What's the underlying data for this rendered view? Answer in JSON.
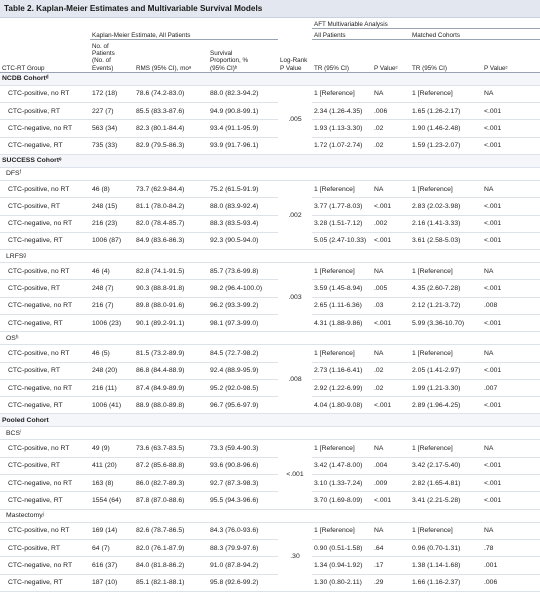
{
  "title": "Table 2. Kaplan-Meier Estimates and Multivariable Survival Models",
  "headers": {
    "aft": "AFT Multivariable Analysis",
    "km": "Kaplan-Meier Estimate, All Patients",
    "all_patients": "All Patients",
    "matched": "Matched Cohorts",
    "group": "CTC-RT Group",
    "n_line1": "No. of",
    "n_line2": "Patients",
    "n_line3": "(No. of",
    "n_line4": "Events)",
    "rms": "RMS (95% CI), moᵃ",
    "surv_line1": "Survival",
    "surv_line2": "Proportion, %",
    "surv_line3": "(95% CI)ᵇ",
    "logrank_line1": "Log-Rank",
    "logrank_line2": "P Value",
    "tr1": "TR (95% CI)",
    "pv1": "P Valueᶜ",
    "tr2": "TR (95% CI)",
    "pv2": "P Valueᶜ"
  },
  "cohorts": {
    "ncdb": "NCDB Cohortᵈ",
    "success": "SUCCESS Cohortᵉ",
    "pooled": "Pooled Cohort"
  },
  "subgroups": {
    "dfs": "DFSᶠ",
    "lrfs": "LRFSᵍ",
    "os": "OSʰ",
    "bcs": "BCSⁱ",
    "mastectomy": "Mastectomyʲ"
  },
  "logrank": {
    "ncdb": ".005",
    "dfs": ".002",
    "lrfs": ".003",
    "os": ".008",
    "bcs": "<.001",
    "mastectomy": ".30"
  },
  "rows": {
    "ncdb": [
      {
        "group": "CTC-positive, no RT",
        "n": "172 (18)",
        "rms": "78.6 (74.2-83.0)",
        "surv": "88.0 (82.3-94.2)",
        "tr1": "1 [Reference]",
        "p1": "NA",
        "tr2": "1 [Reference]",
        "p2": "NA"
      },
      {
        "group": "CTC-positive, RT",
        "n": "227 (7)",
        "rms": "85.5 (83.3-87.6)",
        "surv": "94.9 (90.8-99.1)",
        "tr1": "2.34 (1.26-4.35)",
        "p1": ".006",
        "tr2": "1.65 (1.26-2.17)",
        "p2": "<.001"
      },
      {
        "group": "CTC-negative, no RT",
        "n": "563 (34)",
        "rms": "82.3 (80.1-84.4)",
        "surv": "93.4 (91.1-95.9)",
        "tr1": "1.93 (1.13-3.30)",
        "p1": ".02",
        "tr2": "1.90 (1.46-2.48)",
        "p2": "<.001"
      },
      {
        "group": "CTC-negative, RT",
        "n": "735 (33)",
        "rms": "82.9 (79.5-86.3)",
        "surv": "93.9 (91.7-96.1)",
        "tr1": "1.72 (1.07-2.74)",
        "p1": ".02",
        "tr2": "1.59 (1.23-2.07)",
        "p2": "<.001"
      }
    ],
    "dfs": [
      {
        "group": "CTC-positive, no RT",
        "n": "46 (8)",
        "rms": "73.7 (62.9-84.4)",
        "surv": "75.2 (61.5-91.9)",
        "tr1": "1 [Reference]",
        "p1": "NA",
        "tr2": "1 [Reference]",
        "p2": "NA"
      },
      {
        "group": "CTC-positive, RT",
        "n": "248 (15)",
        "rms": "81.1 (78.0-84.2)",
        "surv": "88.0 (83.9-92.4)",
        "tr1": "3.77 (1.77-8.03)",
        "p1": "<.001",
        "tr2": "2.83 (2.02-3.98)",
        "p2": "<.001"
      },
      {
        "group": "CTC-negative, no RT",
        "n": "216 (23)",
        "rms": "82.0 (78.4-85.7)",
        "surv": "88.3 (83.5-93.4)",
        "tr1": "3.28 (1.51-7.12)",
        "p1": ".002",
        "tr2": "2.16 (1.41-3.33)",
        "p2": "<.001"
      },
      {
        "group": "CTC-negative, RT",
        "n": "1006 (87)",
        "rms": "84.9 (83.6-86.3)",
        "surv": "92.3 (90.5-94.0)",
        "tr1": "5.05 (2.47-10.33)",
        "p1": "<.001",
        "tr2": "3.61 (2.58-5.03)",
        "p2": "<.001"
      }
    ],
    "lrfs": [
      {
        "group": "CTC-positive, no RT",
        "n": "46 (4)",
        "rms": "82.8 (74.1-91.5)",
        "surv": "85.7 (73.6-99.8)",
        "tr1": "1 [Reference]",
        "p1": "NA",
        "tr2": "1 [Reference]",
        "p2": "NA"
      },
      {
        "group": "CTC-positive, RT",
        "n": "248 (7)",
        "rms": "90.3 (88.8-91.8)",
        "surv": "98.2 (96.4-100.0)",
        "tr1": "3.59 (1.45-8.94)",
        "p1": ".005",
        "tr2": "4.35 (2.60-7.28)",
        "p2": "<.001"
      },
      {
        "group": "CTC-negative, no RT",
        "n": "216 (7)",
        "rms": "89.8 (88.0-91.6)",
        "surv": "96.2 (93.3-99.2)",
        "tr1": "2.65 (1.11-6.36)",
        "p1": ".03",
        "tr2": "2.12 (1.21-3.72)",
        "p2": ".008"
      },
      {
        "group": "CTC-negative, RT",
        "n": "1006 (23)",
        "rms": "90.1 (89.2-91.1)",
        "surv": "98.1 (97.3-99.0)",
        "tr1": "4.31 (1.88-9.86)",
        "p1": "<.001",
        "tr2": "5.99 (3.36-10.70)",
        "p2": "<.001"
      }
    ],
    "os": [
      {
        "group": "CTC-positive, no RT",
        "n": "46 (5)",
        "rms": "81.5 (73.2-89.9)",
        "surv": "84.5 (72.7-98.2)",
        "tr1": "1 [Reference]",
        "p1": "NA",
        "tr2": "1 [Reference]",
        "p2": "NA"
      },
      {
        "group": "CTC-positive, RT",
        "n": "248 (20)",
        "rms": "86.8 (84.4-88.9)",
        "surv": "92.4 (88.9-95.9)",
        "tr1": "2.73 (1.16-6.41)",
        "p1": ".02",
        "tr2": "2.05 (1.41-2.97)",
        "p2": "<.001"
      },
      {
        "group": "CTC-negative, no RT",
        "n": "216 (11)",
        "rms": "87.4 (84.9-89.9)",
        "surv": "95.2 (92.0-98.5)",
        "tr1": "2.92 (1.22-6.99)",
        "p1": ".02",
        "tr2": "1.99 (1.21-3.30)",
        "p2": ".007"
      },
      {
        "group": "CTC-negative, RT",
        "n": "1006 (41)",
        "rms": "88.9 (88.0-89.8)",
        "surv": "96.7 (95.6-97.9)",
        "tr1": "4.04 (1.80-9.08)",
        "p1": "<.001",
        "tr2": "2.89 (1.96-4.25)",
        "p2": "<.001"
      }
    ],
    "bcs": [
      {
        "group": "CTC-positive, no RT",
        "n": "49 (9)",
        "rms": "73.6 (63.7-83.5)",
        "surv": "73.3 (59.4-90.3)",
        "tr1": "1 [Reference]",
        "p1": "NA",
        "tr2": "1 [Reference]",
        "p2": "NA"
      },
      {
        "group": "CTC-positive, RT",
        "n": "411 (20)",
        "rms": "87.2 (85.6-88.8)",
        "surv": "93.6 (90.8-96.6)",
        "tr1": "3.42 (1.47-8.00)",
        "p1": ".004",
        "tr2": "3.42 (2.17-5.40)",
        "p2": "<.001"
      },
      {
        "group": "CTC-negative, no RT",
        "n": "163 (8)",
        "rms": "86.0 (82.7-89.3)",
        "surv": "92.7 (87.3-98.3)",
        "tr1": "3.10 (1.33-7.24)",
        "p1": ".009",
        "tr2": "2.82 (1.65-4.81)",
        "p2": "<.001"
      },
      {
        "group": "CTC-negative, RT",
        "n": "1554 (64)",
        "rms": "87.8 (87.0-88.6)",
        "surv": "95.5 (94.3-96.6)",
        "tr1": "3.70 (1.69-8.09)",
        "p1": "<.001",
        "tr2": "3.41 (2.21-5.28)",
        "p2": "<.001"
      }
    ],
    "mastectomy": [
      {
        "group": "CTC-positive, no RT",
        "n": "169 (14)",
        "rms": "82.6 (78.7-86.5)",
        "surv": "84.3 (76.0-93.6)",
        "tr1": "1 [Reference]",
        "p1": "NA",
        "tr2": "1 [Reference]",
        "p2": "NA"
      },
      {
        "group": "CTC-positive, RT",
        "n": "64 (7)",
        "rms": "82.0 (76.1-87.9)",
        "surv": "88.3 (79.9-97.6)",
        "tr1": "0.90 (0.51-1.58)",
        "p1": ".64",
        "tr2": "0.96 (0.70-1.31)",
        "p2": ".78"
      },
      {
        "group": "CTC-negative, no RT",
        "n": "616 (37)",
        "rms": "84.0 (81.8-86.2)",
        "surv": "91.0 (87.8-94.2)",
        "tr1": "1.34 (0.94-1.92)",
        "p1": ".17",
        "tr2": "1.38 (1.14-1.68)",
        "p2": ".001"
      },
      {
        "group": "CTC-negative, RT",
        "n": "187 (10)",
        "rms": "85.1 (82.1-88.1)",
        "surv": "95.8 (92.6-99.2)",
        "tr1": "1.30 (0.80-2.11)",
        "p1": ".29",
        "tr2": "1.66 (1.16-2.37)",
        "p2": ".006"
      }
    ]
  }
}
